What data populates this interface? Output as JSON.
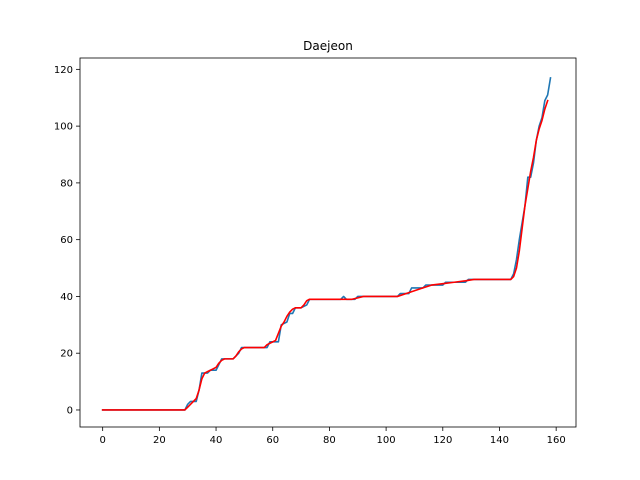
{
  "chart_data": {
    "type": "line",
    "title": "Daejeon",
    "xlabel": "",
    "ylabel": "",
    "xlim": [
      -8,
      167
    ],
    "ylim": [
      -6,
      124
    ],
    "x_ticks": [
      0,
      20,
      40,
      60,
      80,
      100,
      120,
      140,
      160
    ],
    "y_ticks": [
      0,
      20,
      40,
      60,
      80,
      100,
      120
    ],
    "grid": false,
    "legend": "none",
    "series": [
      {
        "color": "#1f77b4",
        "points": [
          [
            0,
            0
          ],
          [
            29,
            0
          ],
          [
            30,
            2
          ],
          [
            31,
            3
          ],
          [
            33,
            3
          ],
          [
            34,
            7
          ],
          [
            35,
            13
          ],
          [
            37,
            13
          ],
          [
            38,
            14
          ],
          [
            40,
            14
          ],
          [
            41,
            16
          ],
          [
            42,
            18
          ],
          [
            44,
            18
          ],
          [
            46,
            18
          ],
          [
            48,
            20
          ],
          [
            49,
            22
          ],
          [
            54,
            22
          ],
          [
            58,
            22
          ],
          [
            59,
            24
          ],
          [
            62,
            24
          ],
          [
            63,
            30
          ],
          [
            65,
            31
          ],
          [
            66,
            34
          ],
          [
            67,
            34
          ],
          [
            68,
            36
          ],
          [
            70,
            36
          ],
          [
            72,
            37
          ],
          [
            73,
            39
          ],
          [
            80,
            39
          ],
          [
            84,
            39
          ],
          [
            85,
            40
          ],
          [
            86,
            39
          ],
          [
            89,
            39
          ],
          [
            90,
            40
          ],
          [
            104,
            40
          ],
          [
            105,
            41
          ],
          [
            108,
            41
          ],
          [
            109,
            43
          ],
          [
            113,
            43
          ],
          [
            114,
            44
          ],
          [
            120,
            44
          ],
          [
            121,
            45
          ],
          [
            128,
            45
          ],
          [
            129,
            46
          ],
          [
            144,
            46
          ],
          [
            145,
            48
          ],
          [
            146,
            53
          ],
          [
            147,
            60
          ],
          [
            148,
            66
          ],
          [
            149,
            72
          ],
          [
            150,
            82
          ],
          [
            151,
            82
          ],
          [
            152,
            87
          ],
          [
            153,
            95
          ],
          [
            154,
            100
          ],
          [
            155,
            103
          ],
          [
            156,
            109
          ],
          [
            157,
            111
          ],
          [
            158,
            117
          ]
        ]
      },
      {
        "color": "#ff0000",
        "points": [
          [
            0,
            0
          ],
          [
            29,
            0
          ],
          [
            30,
            1
          ],
          [
            31,
            2
          ],
          [
            32,
            3
          ],
          [
            33,
            4
          ],
          [
            34,
            7
          ],
          [
            35,
            11
          ],
          [
            36,
            13
          ],
          [
            37,
            13.5
          ],
          [
            38,
            14
          ],
          [
            39,
            14.5
          ],
          [
            40,
            15
          ],
          [
            41,
            16.5
          ],
          [
            42,
            17.5
          ],
          [
            43,
            18
          ],
          [
            46,
            18
          ],
          [
            47,
            19
          ],
          [
            48,
            20.5
          ],
          [
            49,
            21.5
          ],
          [
            50,
            22
          ],
          [
            56,
            22
          ],
          [
            57,
            22
          ],
          [
            58,
            23
          ],
          [
            59,
            23.5
          ],
          [
            60,
            24
          ],
          [
            61,
            24.5
          ],
          [
            62,
            27
          ],
          [
            63,
            29.5
          ],
          [
            64,
            31
          ],
          [
            65,
            33
          ],
          [
            66,
            34.5
          ],
          [
            67,
            35.5
          ],
          [
            68,
            36
          ],
          [
            70,
            36
          ],
          [
            71,
            37
          ],
          [
            72,
            38.5
          ],
          [
            73,
            39
          ],
          [
            80,
            39
          ],
          [
            85,
            39
          ],
          [
            88,
            39
          ],
          [
            90,
            39.5
          ],
          [
            92,
            40
          ],
          [
            104,
            40
          ],
          [
            107,
            41
          ],
          [
            110,
            42
          ],
          [
            113,
            43
          ],
          [
            116,
            44
          ],
          [
            120,
            44.5
          ],
          [
            124,
            45
          ],
          [
            128,
            45.5
          ],
          [
            131,
            46
          ],
          [
            144,
            46
          ],
          [
            145,
            47
          ],
          [
            146,
            50
          ],
          [
            147,
            56
          ],
          [
            148,
            64
          ],
          [
            149,
            72
          ],
          [
            150,
            78
          ],
          [
            151,
            84
          ],
          [
            152,
            89
          ],
          [
            153,
            95
          ],
          [
            154,
            99
          ],
          [
            155,
            102
          ],
          [
            156,
            106
          ],
          [
            157,
            109
          ]
        ]
      }
    ]
  }
}
